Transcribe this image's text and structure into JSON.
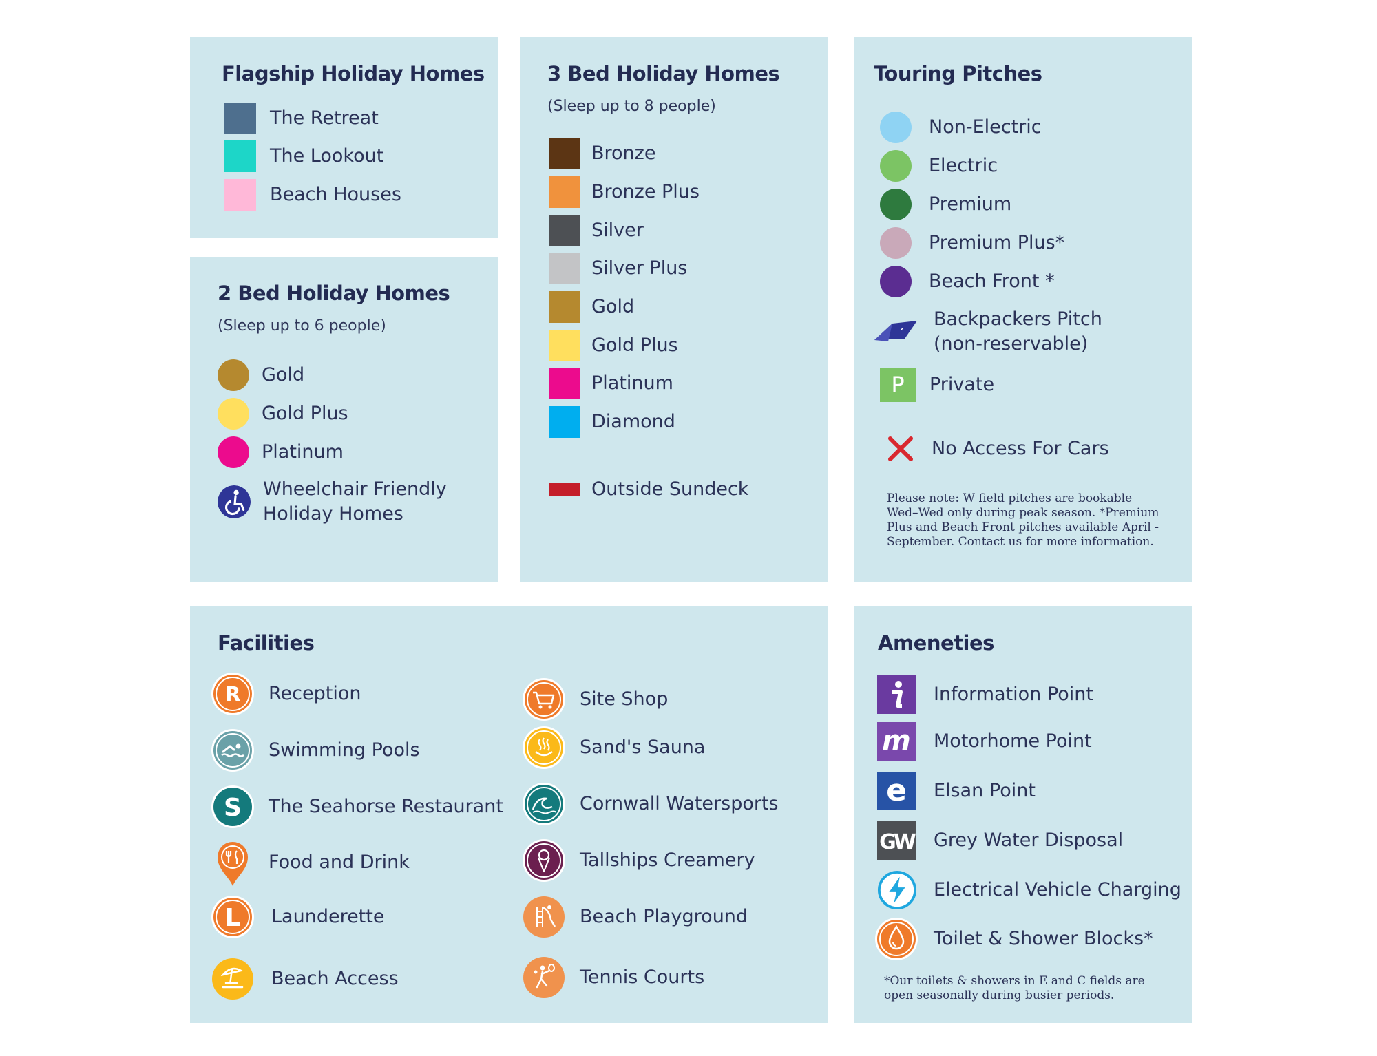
{
  "flagship": {
    "title": "Flagship Holiday Homes",
    "items": [
      {
        "label": "The Retreat",
        "color": "#4e6f8e"
      },
      {
        "label": "The Lookout",
        "color": "#1dd6c8"
      },
      {
        "label": "Beach Houses",
        "color": "#ffb8d8"
      }
    ]
  },
  "two_bed": {
    "title": "2 Bed Holiday Homes",
    "subtitle": "(Sleep up to 6 people)",
    "items": [
      {
        "label": "Gold",
        "color": "#b5892f"
      },
      {
        "label": "Gold Plus",
        "color": "#ffdf5e"
      },
      {
        "label": "Platinum",
        "color": "#ec0b8d"
      }
    ],
    "wheelchair": {
      "line1": "Wheelchair Friendly",
      "line2": "Holiday Homes",
      "color": "#2e3597",
      "icon": "wheelchair-icon"
    }
  },
  "three_bed": {
    "title": "3 Bed Holiday Homes",
    "subtitle": "(Sleep up to 8 people)",
    "items": [
      {
        "label": "Bronze",
        "color": "#5c3514"
      },
      {
        "label": "Bronze Plus",
        "color": "#f0923d"
      },
      {
        "label": "Silver",
        "color": "#4d5054"
      },
      {
        "label": "Silver Plus",
        "color": "#c3c4c6"
      },
      {
        "label": "Gold",
        "color": "#b5892f"
      },
      {
        "label": "Gold Plus",
        "color": "#ffdf5e"
      },
      {
        "label": "Platinum",
        "color": "#ec0b8d"
      },
      {
        "label": "Diamond",
        "color": "#00aeef"
      }
    ],
    "sundeck": {
      "label": "Outside Sundeck",
      "color": "#c41e2a"
    }
  },
  "touring": {
    "title": "Touring Pitches",
    "items": [
      {
        "label": "Non-Electric",
        "color": "#8fd3f3"
      },
      {
        "label": "Electric",
        "color": "#7cc464"
      },
      {
        "label": "Premium",
        "color": "#2e7a3e"
      },
      {
        "label": "Premium Plus*",
        "color": "#c9a9b9"
      },
      {
        "label": "Beach Front *",
        "color": "#5b2d91"
      }
    ],
    "backpackers": {
      "line1": "Backpackers Pitch",
      "line2": "(non-reservable)",
      "color": "#2e3597",
      "icon": "tent-icon"
    },
    "private": {
      "label": "Private",
      "letter": "P",
      "color": "#7cc464"
    },
    "no_cars": {
      "label": "No Access For Cars",
      "color": "#d9282f",
      "icon": "cross-icon"
    },
    "note": "Please note: W field pitches are bookable Wed–Wed only during peak season. *Premium Plus and Beach Front pitches available April - September. Contact us for more information."
  },
  "facilities": {
    "title": "Facilities",
    "left": [
      {
        "label": "Reception",
        "icon": "reception-icon",
        "letter": "R",
        "color": "#ef7a2a"
      },
      {
        "label": "Swimming Pools",
        "icon": "swimmer-icon",
        "color": "#6aa1a8"
      },
      {
        "label": "The Seahorse Restaurant",
        "icon": "seahorse-restaurant-icon",
        "letter": "S",
        "color": "#147a7c"
      },
      {
        "label": "Food and Drink",
        "icon": "food-drink-pin-icon",
        "color": "#ef7a2a"
      },
      {
        "label": "Launderette",
        "icon": "launderette-icon",
        "letter": "L",
        "color": "#ef7a2a"
      },
      {
        "label": "Beach Access",
        "icon": "beach-umbrella-icon",
        "color": "#fbb919"
      }
    ],
    "right": [
      {
        "label": "Site Shop",
        "icon": "shopping-cart-icon",
        "color": "#ef7a2a"
      },
      {
        "label": "Sand's Sauna",
        "icon": "sauna-icon",
        "color": "#fbb919"
      },
      {
        "label": "Cornwall Watersports",
        "icon": "wave-icon",
        "color": "#147a7c"
      },
      {
        "label": "Tallships Creamery",
        "icon": "ice-cream-icon",
        "color": "#6b1f4f"
      },
      {
        "label": "Beach Playground",
        "icon": "playground-slide-icon",
        "color": "#f0924d"
      },
      {
        "label": "Tennis Courts",
        "icon": "tennis-player-icon",
        "color": "#f0924d"
      }
    ]
  },
  "ameneties": {
    "title": "Ameneties",
    "items": [
      {
        "label": "Information Point",
        "icon": "information-icon",
        "letter": "i",
        "color": "#6a3aa0"
      },
      {
        "label": "Motorhome Point",
        "icon": "motorhome-point-icon",
        "letter": "m",
        "color": "#7a48ac"
      },
      {
        "label": "Elsan Point",
        "icon": "elsan-point-icon",
        "letter": "e",
        "color": "#2753a6"
      },
      {
        "label": "Grey Water Disposal",
        "icon": "grey-water-icon",
        "letter": "GW",
        "color": "#4d5054"
      },
      {
        "label": "Electrical Vehicle Charging",
        "icon": "lightning-bolt-icon",
        "color": "#1fa7df"
      },
      {
        "label": "Toilet & Shower Blocks*",
        "icon": "water-drop-icon",
        "color": "#ef7a2a"
      }
    ],
    "note": "*Our toilets & showers in E and C fields are open seasonally during busier periods."
  }
}
